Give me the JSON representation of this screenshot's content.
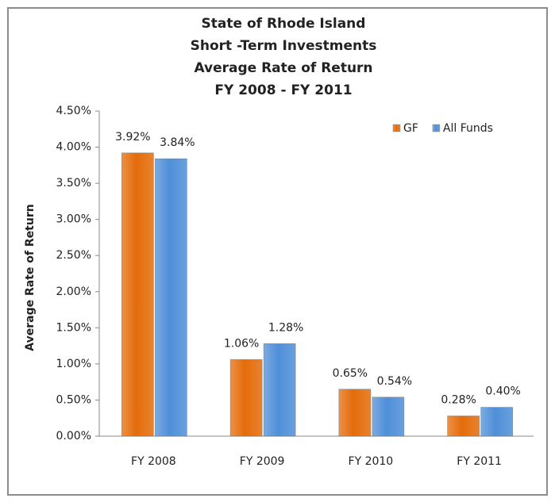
{
  "chart_data": {
    "type": "bar",
    "title": [
      "State of Rhode Island",
      "Short -Term Investments",
      "Average Rate of Return",
      "FY 2008 - FY 2011"
    ],
    "y_label": "Average Rate of Return",
    "categories": [
      "FY 2008",
      "FY 2009",
      "FY 2010",
      "FY 2011"
    ],
    "series": [
      {
        "name": "GF",
        "color": "#e46c0a",
        "values": [
          3.92,
          1.06,
          0.65,
          0.28
        ],
        "value_labels": [
          "3.92%",
          "1.06%",
          "0.65%",
          "0.28%"
        ]
      },
      {
        "name": "All Funds",
        "color": "#4f8fd8",
        "values": [
          3.84,
          1.28,
          0.54,
          0.4
        ],
        "value_labels": [
          "3.84%",
          "1.28%",
          "0.54%",
          "0.40%"
        ]
      }
    ],
    "ylim": [
      0,
      4.5
    ],
    "yticks": [
      {
        "value": 0,
        "label": "0.00%"
      },
      {
        "value": 0.5,
        "label": "0.50%"
      },
      {
        "value": 1,
        "label": "1.00%"
      },
      {
        "value": 1.5,
        "label": "1.50%"
      },
      {
        "value": 2,
        "label": "2.00%"
      },
      {
        "value": 2.5,
        "label": "2.50%"
      },
      {
        "value": 3,
        "label": "3.00%"
      },
      {
        "value": 3.5,
        "label": "3.50%"
      },
      {
        "value": 4,
        "label": "4.00%"
      },
      {
        "value": 4.5,
        "label": "4.50%"
      }
    ],
    "grid": false,
    "legend": "top-right"
  }
}
